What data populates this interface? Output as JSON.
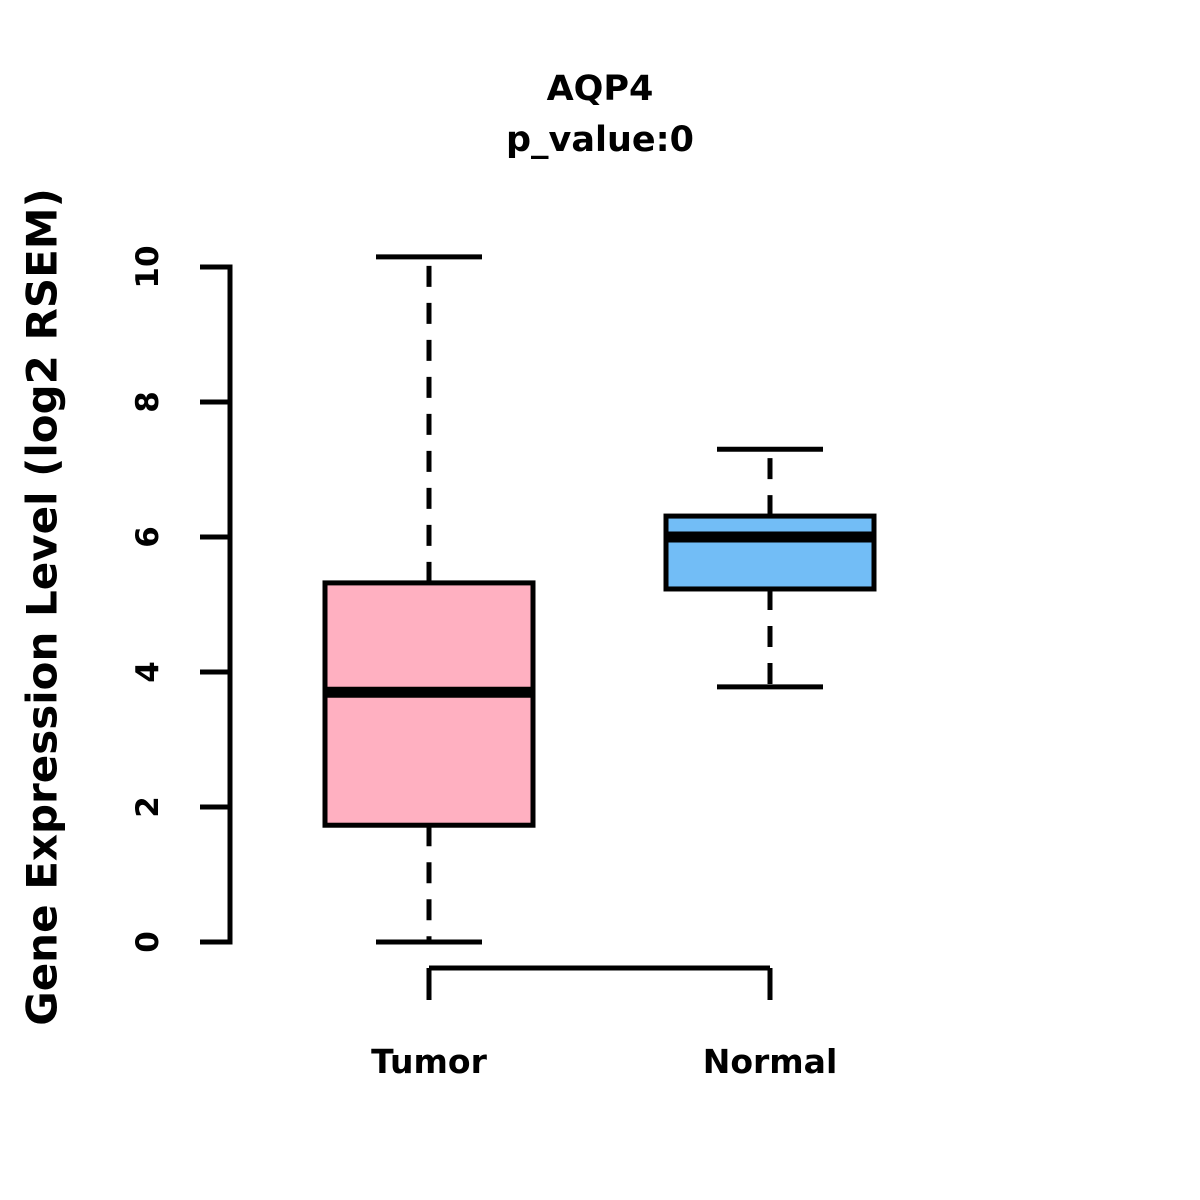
{
  "chart_data": {
    "type": "boxplot",
    "title": "AQP4",
    "subtitle": "p_value:0",
    "ylabel": "Gene Expression Level (log2 RSEM)",
    "xlabel": "",
    "categories": [
      "Tumor",
      "Normal"
    ],
    "yticks": [
      0,
      2,
      4,
      6,
      8,
      10
    ],
    "ylim": [
      0,
      10.3
    ],
    "grid": false,
    "legend": false,
    "orientation": "vertical",
    "series": [
      {
        "name": "Tumor",
        "fill_color": "#FFB0C1",
        "whisker_low": 0.0,
        "q1": 1.73,
        "median": 3.7,
        "q3": 5.32,
        "whisker_high": 10.15,
        "outliers": []
      },
      {
        "name": "Normal",
        "fill_color": "#72BDF6",
        "whisker_low": 3.78,
        "q1": 5.23,
        "median": 6.0,
        "q3": 6.31,
        "whisker_high": 7.3,
        "outliers": []
      }
    ],
    "style_colors": {
      "box_border": "#000000",
      "median_line": "#000000",
      "whisker": "#000000",
      "axis": "#000000",
      "background": "#FFFFFF"
    }
  }
}
